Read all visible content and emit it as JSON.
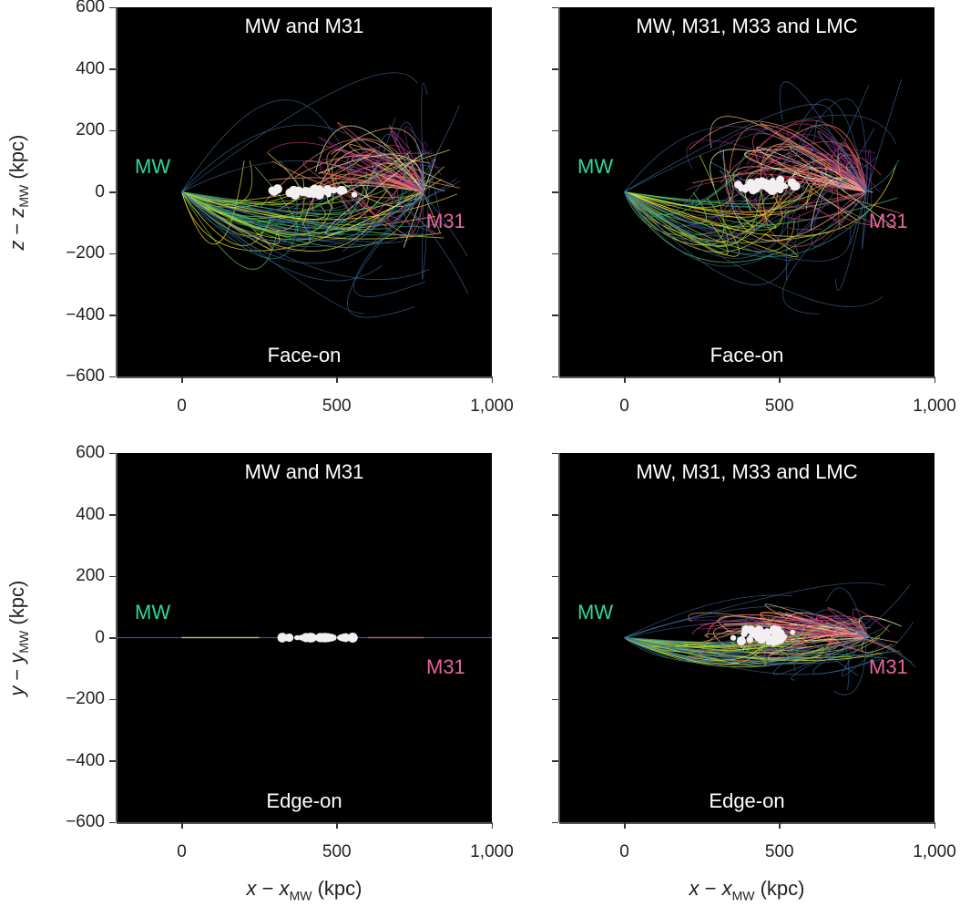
{
  "chart_data": [
    {
      "type": "line",
      "panel": "top-left",
      "title": "MW and M31",
      "view": "Face-on",
      "ylabel": {
        "var": "z",
        "sep": " − ",
        "var2": "z",
        "sub": "MW",
        "unit": " (kpc)"
      },
      "xlim": [
        -210,
        1000
      ],
      "ylim": [
        -600,
        600
      ],
      "grid": false,
      "background": "#000000",
      "xticks": [
        "0",
        "500",
        "1,000"
      ],
      "yticks": [
        "600",
        "400",
        "200",
        "0",
        "−200",
        "−400",
        "−600"
      ],
      "labels": {
        "mw": "MW",
        "m31": "M31"
      },
      "mw_position": [
        0,
        0
      ],
      "m31_position": [
        780,
        0
      ],
      "satellite_cluster_x": [
        270,
        580
      ],
      "satellite_cluster_y": [
        -10,
        10
      ]
    },
    {
      "type": "line",
      "panel": "top-right",
      "title": "MW, M31, M33 and LMC",
      "view": "Face-on",
      "xlim": [
        -210,
        1000
      ],
      "ylim": [
        -600,
        600
      ],
      "grid": false,
      "background": "#000000",
      "xticks": [
        "0",
        "500",
        "1,000"
      ],
      "labels": {
        "mw": "MW",
        "m31": "M31"
      },
      "mw_position": [
        0,
        0
      ],
      "m31_position": [
        780,
        0
      ],
      "satellite_cluster_x": [
        340,
        560
      ],
      "satellite_cluster_y": [
        0,
        40
      ]
    },
    {
      "type": "line",
      "panel": "bottom-left",
      "title": "MW and M31",
      "view": "Edge-on",
      "ylabel": {
        "var": "y",
        "sep": " − ",
        "var2": "y",
        "sub": "MW",
        "unit": " (kpc)"
      },
      "xlabel": {
        "var": "x",
        "sep": " − ",
        "var2": "x",
        "sub": "MW",
        "unit": " (kpc)"
      },
      "xlim": [
        -210,
        1000
      ],
      "ylim": [
        -600,
        600
      ],
      "grid": false,
      "background": "#000000",
      "xticks": [
        "0",
        "500",
        "1,000"
      ],
      "yticks": [
        "600",
        "400",
        "200",
        "0",
        "−200",
        "−400",
        "−600"
      ],
      "labels": {
        "mw": "MW",
        "m31": "M31"
      },
      "mw_position": [
        0,
        0
      ],
      "m31_position": [
        780,
        0
      ],
      "satellite_cluster_x": [
        270,
        580
      ],
      "satellite_cluster_y": [
        0,
        0
      ]
    },
    {
      "type": "line",
      "panel": "bottom-right",
      "title": "MW, M31, M33 and LMC",
      "view": "Edge-on",
      "xlabel": {
        "var": "x",
        "sep": " − ",
        "var2": "x",
        "sub": "MW",
        "unit": " (kpc)"
      },
      "xlim": [
        -210,
        1000
      ],
      "ylim": [
        -600,
        600
      ],
      "grid": false,
      "background": "#000000",
      "xticks": [
        "0",
        "500",
        "1,000"
      ],
      "labels": {
        "mw": "MW",
        "m31": "M31"
      },
      "mw_position": [
        0,
        0
      ],
      "m31_position": [
        780,
        0
      ],
      "satellite_cluster_x": [
        340,
        560
      ],
      "satellite_cluster_y": [
        -20,
        30
      ]
    }
  ],
  "colors": {
    "mw_label": "#2fd89a",
    "m31_label": "#e3679e",
    "mw_orbits": [
      "#fde725",
      "#b5de2b",
      "#5ec962",
      "#21918c",
      "#3b528b"
    ],
    "m31_orbits": [
      "#fcfdbf",
      "#fec287",
      "#fc8961",
      "#e75263",
      "#b73779",
      "#7e2482"
    ],
    "satellites": "#f2eef2"
  }
}
